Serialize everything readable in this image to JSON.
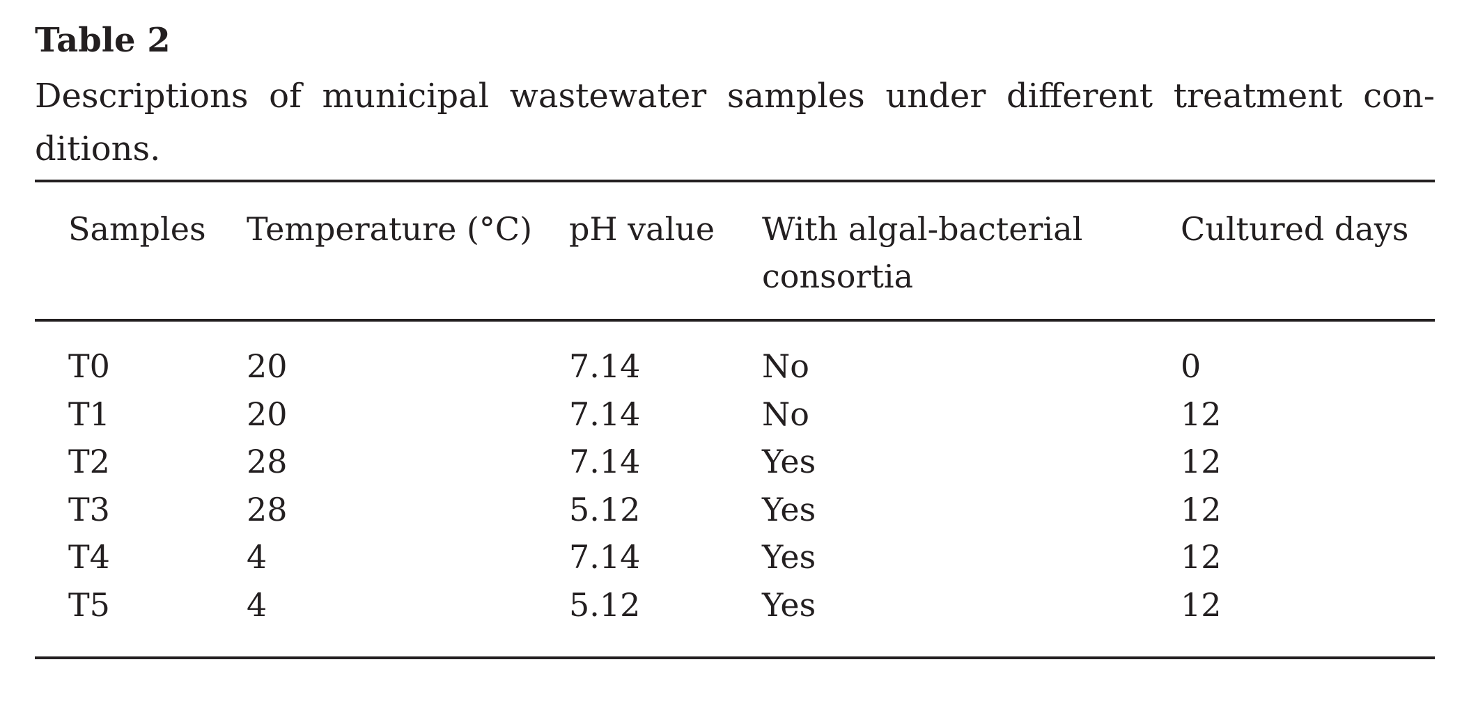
{
  "table_label": "Table 2",
  "caption": {
    "line1": "Descriptions of municipal wastewater samples under different treatment con-",
    "line2": "ditions."
  },
  "columns": [
    "Samples",
    "Temperature (°C)",
    "pH value",
    "With algal-bacterial consortia",
    "Cultured days"
  ],
  "rows": [
    [
      "T0",
      "20",
      "7.14",
      "No",
      "0"
    ],
    [
      "T1",
      "20",
      "7.14",
      "No",
      "12"
    ],
    [
      "T2",
      "28",
      "7.14",
      "Yes",
      "12"
    ],
    [
      "T3",
      "28",
      "5.12",
      "Yes",
      "12"
    ],
    [
      "T4",
      "4",
      "7.14",
      "Yes",
      "12"
    ],
    [
      "T5",
      "4",
      "5.12",
      "Yes",
      "12"
    ]
  ]
}
